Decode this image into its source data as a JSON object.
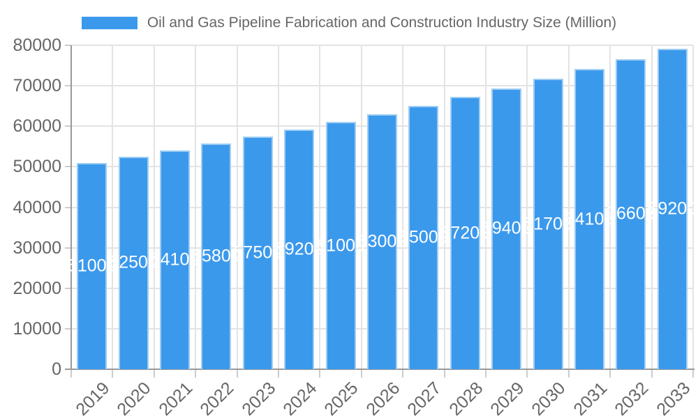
{
  "legend": {
    "label": "Oil and Gas Pipeline Fabrication and Construction Industry Size (Million)"
  },
  "chart_data": {
    "type": "bar",
    "title": "Oil and Gas Pipeline Fabrication and Construction Industry Size (Million)",
    "categories": [
      "2019",
      "2020",
      "2021",
      "2022",
      "2023",
      "2024",
      "2025",
      "2026",
      "2027",
      "2028",
      "2029",
      "2030",
      "2031",
      "2032",
      "2033"
    ],
    "values": [
      51000,
      52500,
      54100,
      55800,
      57500,
      59200,
      61000,
      63000,
      65000,
      67200,
      69400,
      71700,
      74100,
      76600,
      79200
    ],
    "y_tick_labels": [
      "0",
      "10000",
      "20000",
      "30000",
      "40000",
      "50000",
      "60000",
      "70000",
      "80000"
    ],
    "ylim": [
      0,
      80000
    ],
    "ytick_step": 10000,
    "xlabel": "",
    "ylabel": "",
    "grid": true,
    "legend_position": "top",
    "value_labels_shown": true,
    "colors": {
      "bar_fill": "#3b99ec",
      "bar_border": "#9ecdf3",
      "gridline": "#e3e3e3",
      "tick": "#cccccc",
      "axis_line": "#999999",
      "tick_text": "#666666",
      "value_label_text": "#ffffff",
      "background": "#ffffff"
    }
  }
}
